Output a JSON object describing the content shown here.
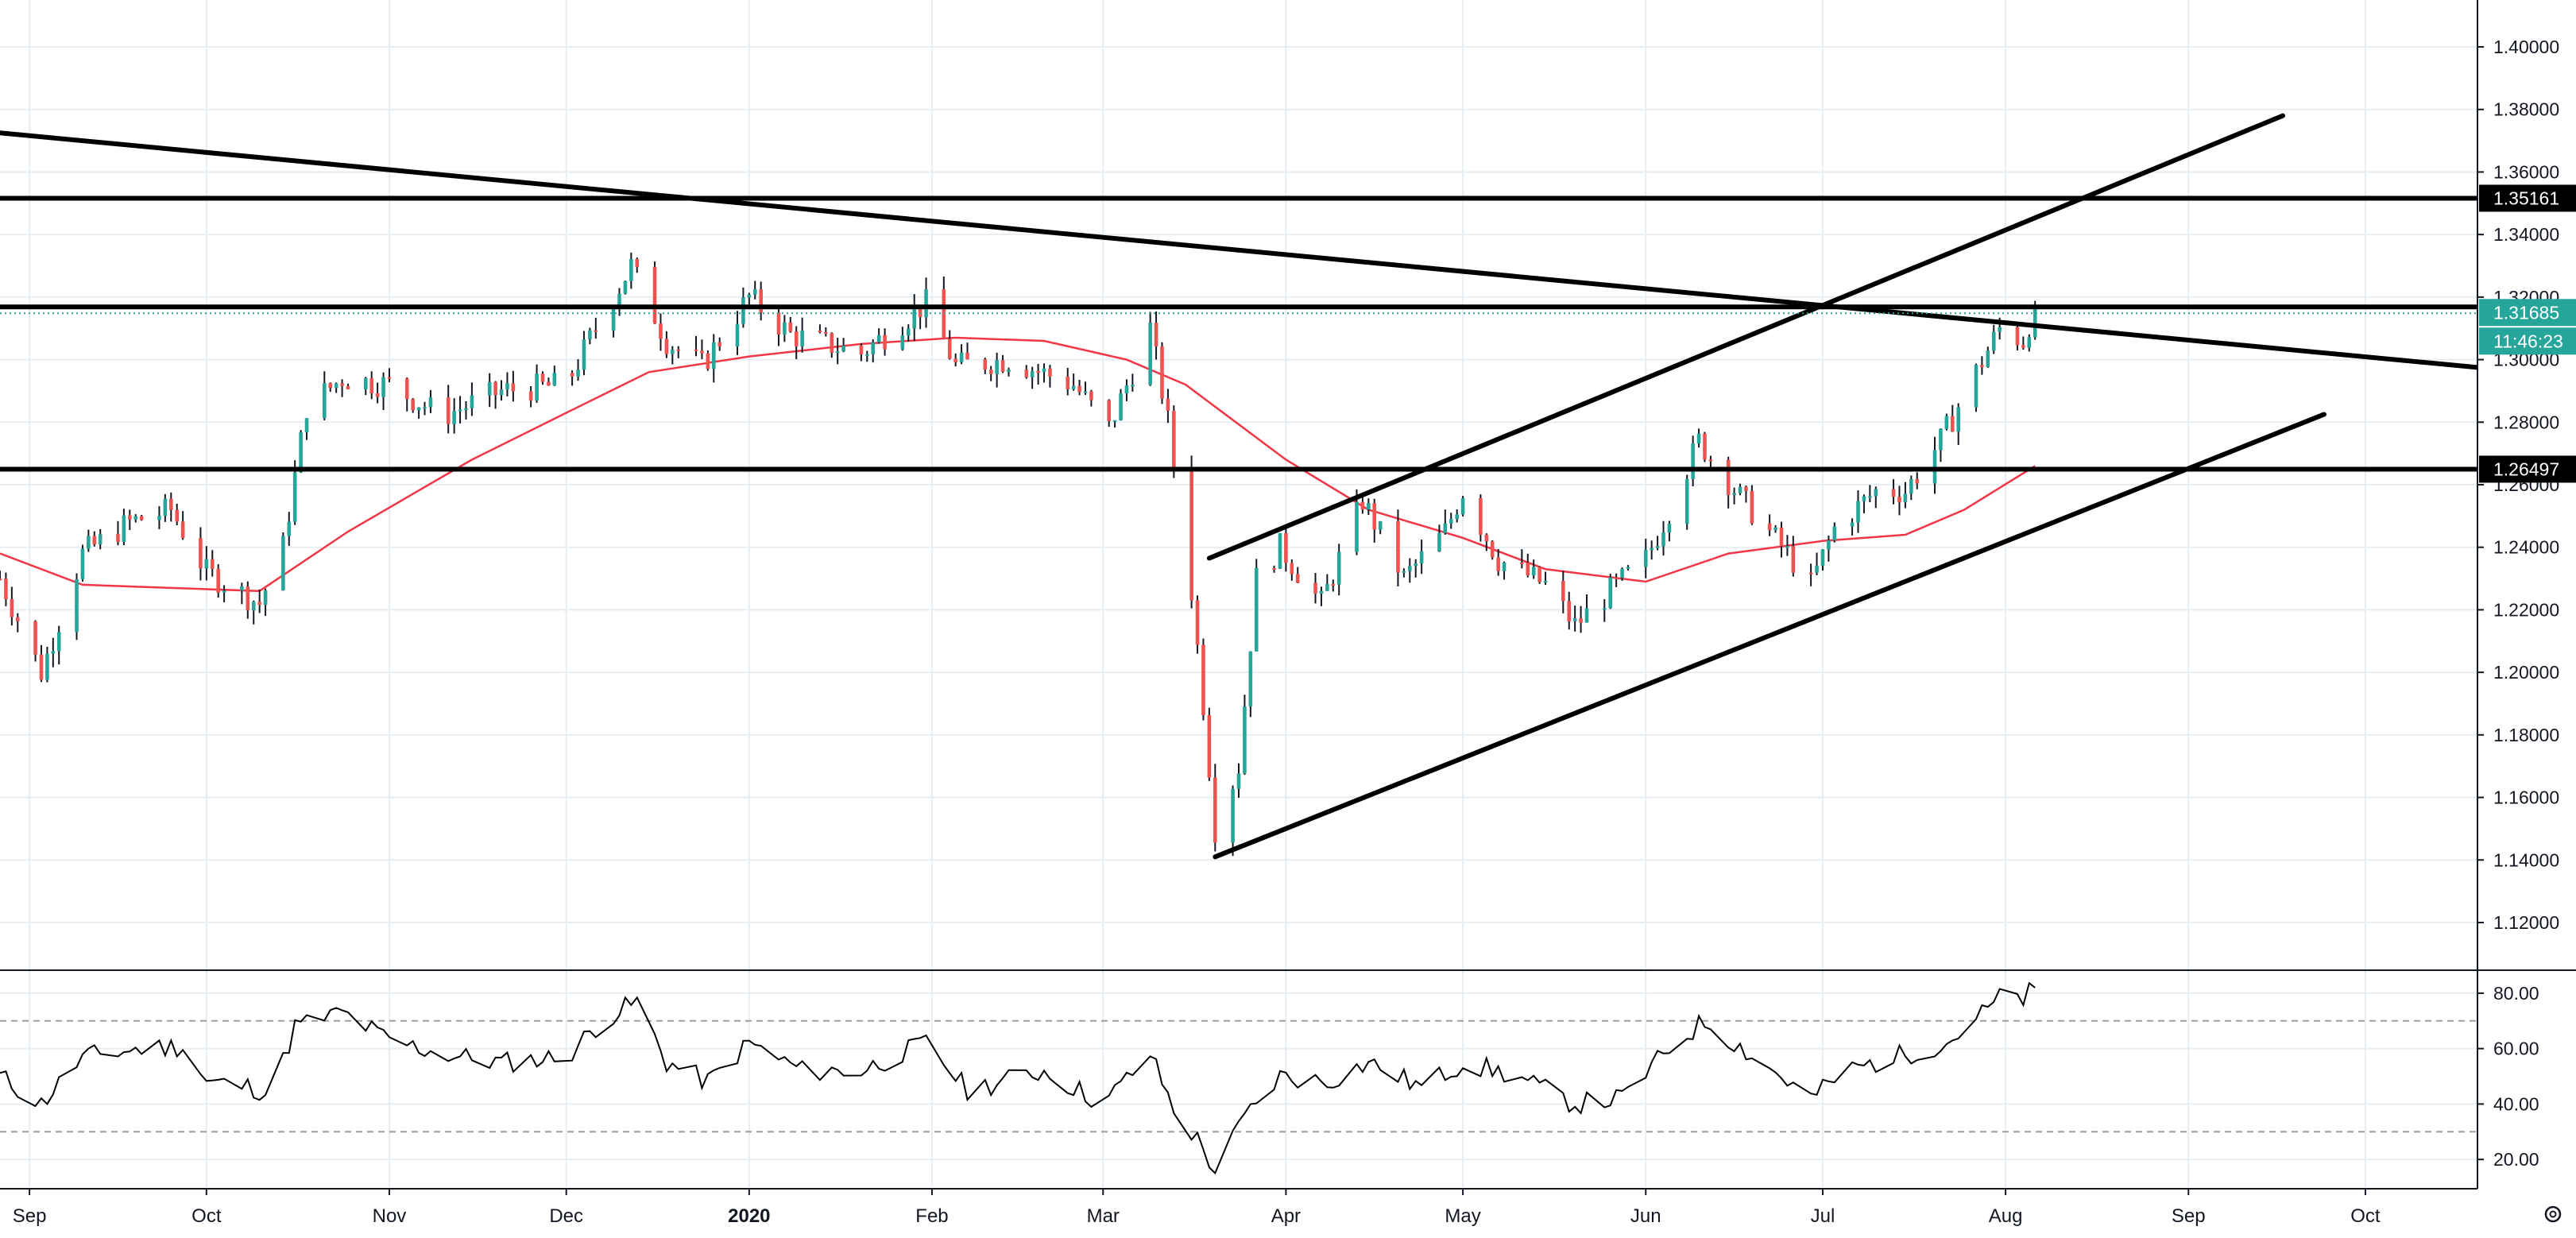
{
  "chart_data": {
    "type": "candlestick",
    "price_axis": {
      "range": [
        1.105,
        1.415
      ],
      "ticks": [
        "1.40000",
        "1.38000",
        "1.36000",
        "1.34000",
        "1.32000",
        "1.30000",
        "1.28000",
        "1.26000",
        "1.24000",
        "1.22000",
        "1.20000",
        "1.18000",
        "1.16000",
        "1.14000",
        "1.12000"
      ],
      "tick_values": [
        1.4,
        1.38,
        1.36,
        1.34,
        1.32,
        1.3,
        1.28,
        1.26,
        1.24,
        1.22,
        1.2,
        1.18,
        1.16,
        1.14,
        1.12
      ]
    },
    "time_axis": {
      "start": "2019-08-27",
      "end": "2020-10-20",
      "labels": [
        {
          "text": "Sep",
          "date": "2019-09-01",
          "bold": false
        },
        {
          "text": "Oct",
          "date": "2019-10-01",
          "bold": false
        },
        {
          "text": "Nov",
          "date": "2019-11-01",
          "bold": false
        },
        {
          "text": "Dec",
          "date": "2019-12-01",
          "bold": false
        },
        {
          "text": "2020",
          "date": "2020-01-01",
          "bold": true
        },
        {
          "text": "Feb",
          "date": "2020-02-01",
          "bold": false
        },
        {
          "text": "Mar",
          "date": "2020-03-01",
          "bold": false
        },
        {
          "text": "Apr",
          "date": "2020-04-01",
          "bold": false
        },
        {
          "text": "May",
          "date": "2020-05-01",
          "bold": false
        },
        {
          "text": "Jun",
          "date": "2020-06-01",
          "bold": false
        },
        {
          "text": "Jul",
          "date": "2020-07-01",
          "bold": false
        },
        {
          "text": "Aug",
          "date": "2020-08-01",
          "bold": false
        },
        {
          "text": "Sep",
          "date": "2020-09-01",
          "bold": false
        },
        {
          "text": "Oct",
          "date": "2020-10-01",
          "bold": false
        }
      ]
    },
    "horizontal_levels": [
      {
        "value": 1.35161,
        "label": "1.35161"
      },
      {
        "value": 1.31685,
        "label": "1.31685"
      },
      {
        "value": 1.26497,
        "label": "1.26497"
      }
    ],
    "last_price": {
      "value": 1.31685,
      "label": "1.31685",
      "countdown": "11:46:23"
    },
    "trendlines": [
      {
        "from": {
          "date": "2019-08-27",
          "value": 1.3725
        },
        "to": {
          "date": "2020-10-20",
          "value": 1.2975
        }
      },
      {
        "from": {
          "date": "2020-03-19",
          "value": 1.2365
        },
        "to": {
          "date": "2020-09-17",
          "value": 1.378
        }
      },
      {
        "from": {
          "date": "2020-03-20",
          "value": 1.141
        },
        "to": {
          "date": "2020-09-24",
          "value": 1.2825
        }
      }
    ],
    "ma_series": [
      [
        "2019-08-27",
        1.238
      ],
      [
        "2019-09-10",
        1.228
      ],
      [
        "2019-09-25",
        1.227
      ],
      [
        "2019-10-10",
        1.226
      ],
      [
        "2019-10-25",
        1.245
      ],
      [
        "2019-11-15",
        1.268
      ],
      [
        "2019-12-01",
        1.283
      ],
      [
        "2019-12-15",
        1.296
      ],
      [
        "2020-01-01",
        1.301
      ],
      [
        "2020-01-20",
        1.305
      ],
      [
        "2020-02-05",
        1.307
      ],
      [
        "2020-02-20",
        1.306
      ],
      [
        "2020-03-05",
        1.3
      ],
      [
        "2020-03-15",
        1.292
      ],
      [
        "2020-04-01",
        1.268
      ],
      [
        "2020-04-15",
        1.252
      ],
      [
        "2020-05-01",
        1.243
      ],
      [
        "2020-05-15",
        1.233
      ],
      [
        "2020-06-01",
        1.229
      ],
      [
        "2020-06-15",
        1.238
      ],
      [
        "2020-07-01",
        1.242
      ],
      [
        "2020-07-15",
        1.244
      ],
      [
        "2020-07-25",
        1.252
      ],
      [
        "2020-08-06",
        1.266
      ]
    ],
    "price_anchors": [
      [
        "2019-08-27",
        1.23
      ],
      [
        "2019-09-03",
        1.2
      ],
      [
        "2019-09-10",
        1.238
      ],
      [
        "2019-09-18",
        1.248
      ],
      [
        "2019-09-25",
        1.252
      ],
      [
        "2019-10-01",
        1.232
      ],
      [
        "2019-10-10",
        1.222
      ],
      [
        "2019-10-14",
        1.24
      ],
      [
        "2019-10-18",
        1.285
      ],
      [
        "2019-10-24",
        1.294
      ],
      [
        "2019-11-01",
        1.292
      ],
      [
        "2019-11-10",
        1.282
      ],
      [
        "2019-11-20",
        1.29
      ],
      [
        "2019-12-01",
        1.292
      ],
      [
        "2019-12-06",
        1.31
      ],
      [
        "2019-12-12",
        1.33
      ],
      [
        "2019-12-18",
        1.306
      ],
      [
        "2019-12-24",
        1.298
      ],
      [
        "2020-01-01",
        1.32
      ],
      [
        "2020-01-08",
        1.308
      ],
      [
        "2020-01-20",
        1.302
      ],
      [
        "2020-01-31",
        1.318
      ],
      [
        "2020-02-05",
        1.298
      ],
      [
        "2020-02-14",
        1.3
      ],
      [
        "2020-02-25",
        1.292
      ],
      [
        "2020-03-02",
        1.278
      ],
      [
        "2020-03-09",
        1.31
      ],
      [
        "2020-03-12",
        1.28
      ],
      [
        "2020-03-16",
        1.226
      ],
      [
        "2020-03-18",
        1.19
      ],
      [
        "2020-03-20",
        1.15
      ],
      [
        "2020-03-24",
        1.17
      ],
      [
        "2020-03-27",
        1.23
      ],
      [
        "2020-03-31",
        1.24
      ],
      [
        "2020-04-07",
        1.222
      ],
      [
        "2020-04-14",
        1.255
      ],
      [
        "2020-04-21",
        1.23
      ],
      [
        "2020-04-28",
        1.245
      ],
      [
        "2020-05-01",
        1.258
      ],
      [
        "2020-05-07",
        1.236
      ],
      [
        "2020-05-15",
        1.228
      ],
      [
        "2020-05-20",
        1.215
      ],
      [
        "2020-05-26",
        1.226
      ],
      [
        "2020-06-01",
        1.236
      ],
      [
        "2020-06-05",
        1.252
      ],
      [
        "2020-06-10",
        1.274
      ],
      [
        "2020-06-17",
        1.256
      ],
      [
        "2020-06-25",
        1.238
      ],
      [
        "2020-06-29",
        1.228
      ],
      [
        "2020-07-03",
        1.246
      ],
      [
        "2020-07-10",
        1.258
      ],
      [
        "2020-07-15",
        1.258
      ],
      [
        "2020-07-21",
        1.274
      ],
      [
        "2020-07-27",
        1.296
      ],
      [
        "2020-07-31",
        1.31
      ],
      [
        "2020-08-04",
        1.306
      ],
      [
        "2020-08-06",
        1.3168
      ]
    ],
    "rsi": {
      "range": [
        10,
        88
      ],
      "ticks": [
        "80.00",
        "60.00",
        "40.00",
        "20.00"
      ],
      "tick_values": [
        80,
        60,
        40,
        20
      ],
      "levels": [
        70,
        30
      ],
      "anchors": [
        [
          "2019-08-27",
          50
        ],
        [
          "2019-09-03",
          40
        ],
        [
          "2019-09-10",
          57
        ],
        [
          "2019-09-20",
          60
        ],
        [
          "2019-09-27",
          61
        ],
        [
          "2019-10-01",
          48
        ],
        [
          "2019-10-09",
          46
        ],
        [
          "2019-10-12",
          43
        ],
        [
          "2019-10-16",
          68
        ],
        [
          "2019-10-24",
          73
        ],
        [
          "2019-11-01",
          63
        ],
        [
          "2019-11-10",
          58
        ],
        [
          "2019-11-20",
          55
        ],
        [
          "2019-12-01",
          57
        ],
        [
          "2019-12-07",
          70
        ],
        [
          "2019-12-13",
          77
        ],
        [
          "2019-12-18",
          55
        ],
        [
          "2019-12-25",
          48
        ],
        [
          "2020-01-01",
          62
        ],
        [
          "2020-01-10",
          52
        ],
        [
          "2020-01-20",
          52
        ],
        [
          "2020-01-31",
          62
        ],
        [
          "2020-02-07",
          45
        ],
        [
          "2020-02-20",
          52
        ],
        [
          "2020-03-01",
          40
        ],
        [
          "2020-03-09",
          58
        ],
        [
          "2020-03-13",
          38
        ],
        [
          "2020-03-17",
          27
        ],
        [
          "2020-03-20",
          16
        ],
        [
          "2020-03-25",
          35
        ],
        [
          "2020-03-31",
          50
        ],
        [
          "2020-04-08",
          48
        ],
        [
          "2020-04-15",
          55
        ],
        [
          "2020-04-24",
          46
        ],
        [
          "2020-05-01",
          55
        ],
        [
          "2020-05-10",
          50
        ],
        [
          "2020-05-20",
          40
        ],
        [
          "2020-05-28",
          42
        ],
        [
          "2020-06-05",
          60
        ],
        [
          "2020-06-11",
          70
        ],
        [
          "2020-06-20",
          56
        ],
        [
          "2020-06-29",
          42
        ],
        [
          "2020-07-05",
          52
        ],
        [
          "2020-07-15",
          58
        ],
        [
          "2020-07-22",
          62
        ],
        [
          "2020-07-30",
          76
        ],
        [
          "2020-08-01",
          80
        ],
        [
          "2020-08-04",
          78
        ],
        [
          "2020-08-06",
          82
        ]
      ]
    }
  },
  "colors": {
    "up": "#26a69a",
    "down": "#ef5350",
    "ma": "#f23645",
    "grid": "#e6eef4",
    "axis_border": "#131722",
    "level_tag_bg": "#000000",
    "price_tag_bg": "#26a69a",
    "rsi_line": "#000000",
    "rsi_level_line": "#9e9e9e"
  },
  "icons": {
    "settings": "gear-icon"
  }
}
